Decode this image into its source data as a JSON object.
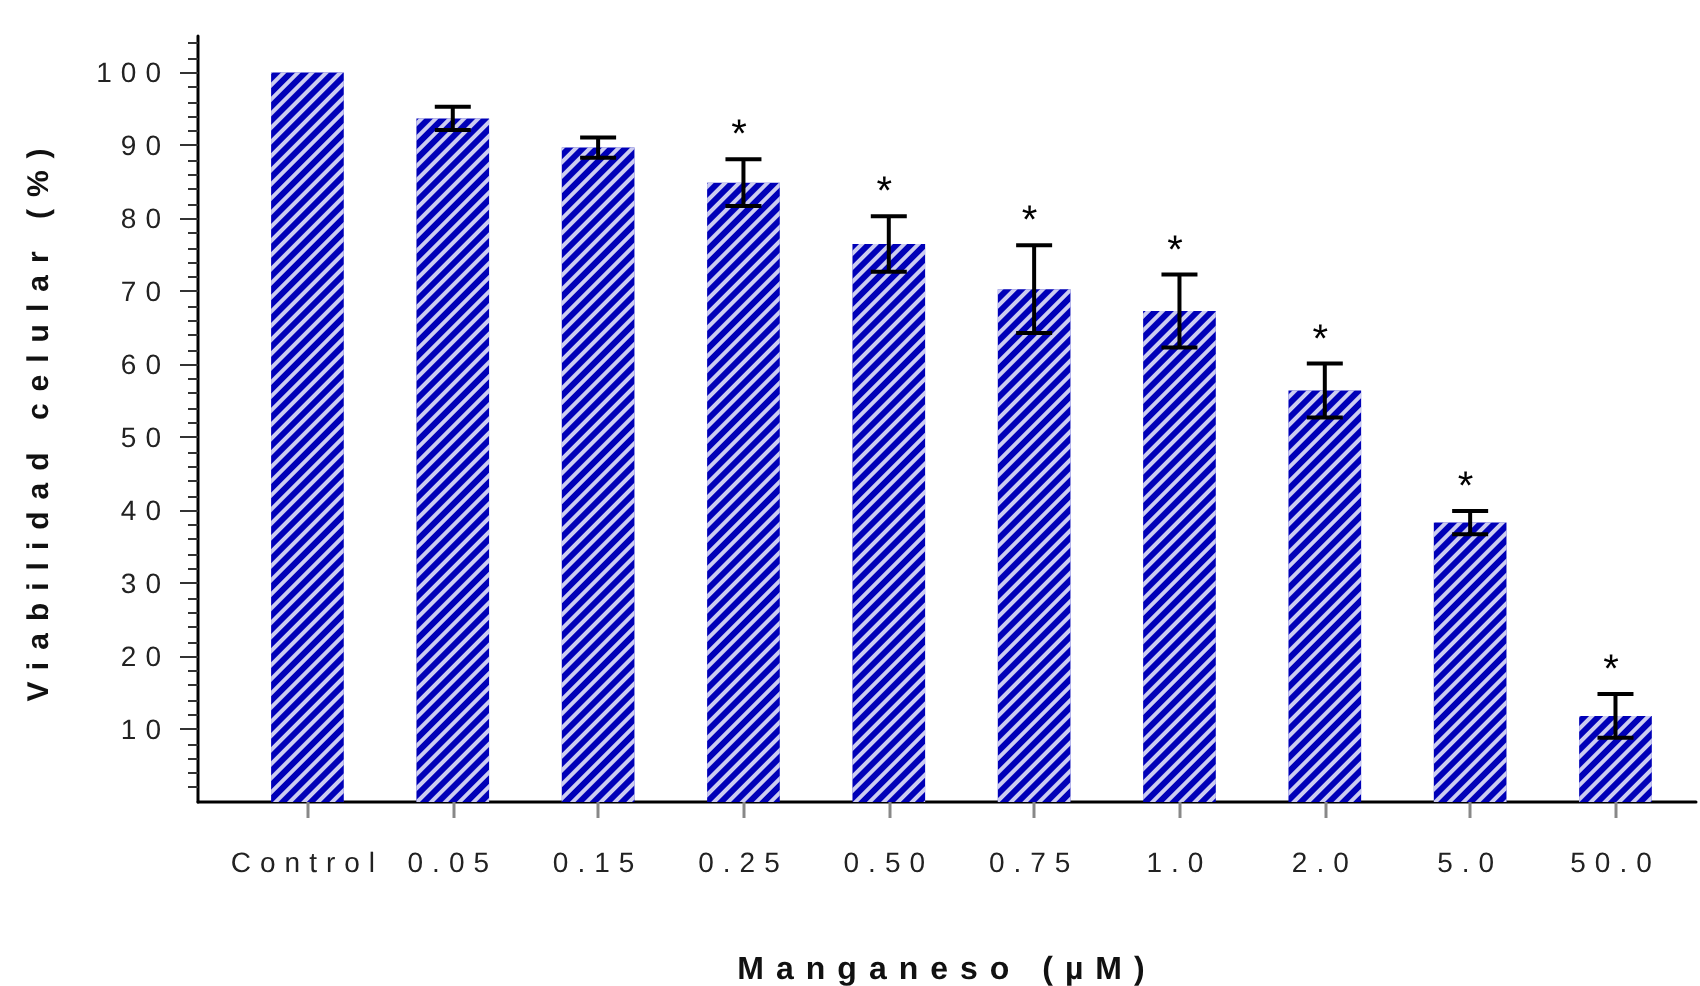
{
  "chart_data": {
    "type": "bar",
    "xlabel": "Manganeso (µM)",
    "ylabel": "Viabilidad celular (%)",
    "categories": [
      "Control",
      "0.05",
      "0.15",
      "0.25",
      "0.50",
      "0.75",
      "1.0",
      "2.0",
      "5.0",
      "50.0"
    ],
    "values": [
      100,
      93.7,
      89.7,
      84.9,
      76.5,
      70.3,
      67.3,
      56.4,
      38.3,
      11.8
    ],
    "errors": [
      null,
      1.6,
      1.4,
      3.2,
      3.8,
      6.0,
      5.0,
      3.7,
      1.6,
      3.0
    ],
    "color": "#0000b8",
    "ylim": [
      0,
      105
    ],
    "yticks": [
      {
        "value": 2,
        "label": null
      },
      {
        "value": 4,
        "label": null
      },
      {
        "value": 6,
        "label": null
      },
      {
        "value": 8,
        "label": null
      },
      10,
      {
        "value": 12,
        "label": null
      },
      {
        "value": 14,
        "label": null
      },
      {
        "value": 16,
        "label": null
      },
      {
        "value": 18,
        "label": null
      },
      20,
      {
        "value": 22,
        "label": null
      },
      {
        "value": 24,
        "label": null
      },
      {
        "value": 26,
        "label": null
      },
      {
        "value": 28,
        "label": null
      },
      30,
      {
        "value": 32,
        "label": null
      },
      {
        "value": 34,
        "label": null
      },
      {
        "value": 36,
        "label": null
      },
      {
        "value": 38,
        "label": null
      },
      40,
      {
        "value": 42,
        "label": null
      },
      {
        "value": 44,
        "label": null
      },
      {
        "value": 46,
        "label": null
      },
      {
        "value": 48,
        "label": null
      },
      50,
      {
        "value": 52,
        "label": null
      },
      {
        "value": 54,
        "label": null
      },
      {
        "value": 56,
        "label": null
      },
      {
        "value": 58,
        "label": null
      },
      60,
      {
        "value": 62,
        "label": null
      },
      {
        "value": 64,
        "label": null
      },
      {
        "value": 66,
        "label": null
      },
      {
        "value": 68,
        "label": null
      },
      70,
      {
        "value": 72,
        "label": null
      },
      {
        "value": 74,
        "label": null
      },
      {
        "value": 76,
        "label": null
      },
      {
        "value": 78,
        "label": null
      },
      80,
      {
        "value": 82,
        "label": null
      },
      {
        "value": 84,
        "label": null
      },
      {
        "value": 86,
        "label": null
      },
      {
        "value": 88,
        "label": null
      },
      90,
      {
        "value": 92,
        "label": null
      },
      {
        "value": 94,
        "label": null
      },
      {
        "value": 96,
        "label": null
      },
      {
        "value": 98,
        "label": null
      },
      100,
      {
        "value": 102,
        "label": null
      },
      {
        "value": 104,
        "label": null
      }
    ],
    "annotations": [
      {
        "text": "*",
        "x": "0.25",
        "y": 84.9
      },
      {
        "text": "*",
        "x": "0.50",
        "y": 76.5
      },
      {
        "text": "*",
        "x": "0.75",
        "y": 70.3
      },
      {
        "text": "*",
        "x": "1.0",
        "y": 67.3
      },
      {
        "text": "*",
        "x": "2.0",
        "y": 56.4
      },
      {
        "text": "*",
        "x": "5.0",
        "y": 38.3
      },
      {
        "text": "*",
        "x": "50.0",
        "y": 11.8
      }
    ]
  }
}
